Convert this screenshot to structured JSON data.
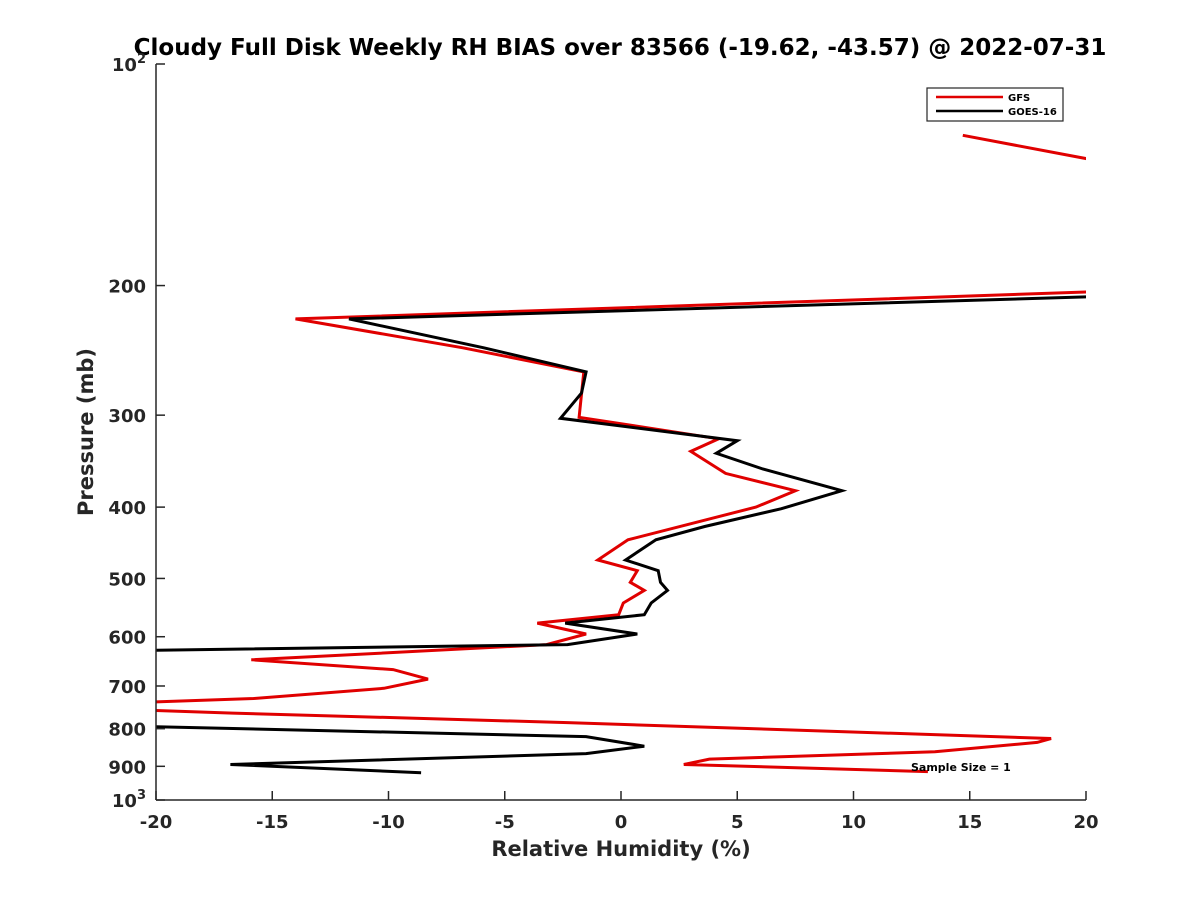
{
  "chart_data": {
    "type": "line",
    "title": "Cloudy Full Disk Weekly RH BIAS over 83566 (-19.62, -43.57) @ 2022-07-31",
    "xlabel": "Relative Humidity (%)",
    "ylabel": "Pressure (mb)",
    "xlim": [
      -20,
      20
    ],
    "ylim": [
      100,
      1000
    ],
    "y_scale": "log",
    "y_reversed": true,
    "grid": false,
    "legend_position": "top-right",
    "x_ticks": [
      "-20",
      "-15",
      "-10",
      "-5",
      "0",
      "5",
      "10",
      "15",
      "20"
    ],
    "y_ticks": [
      "200",
      "300",
      "400",
      "500",
      "600",
      "700",
      "800",
      "900"
    ],
    "y_tick_top": "10",
    "y_tick_top_exp": "2",
    "y_tick_bottom": "10",
    "y_tick_bottom_exp": "3",
    "annotation": "Sample Size = 1",
    "series": [
      {
        "name": "GFS",
        "color": "#e00000",
        "segments": [
          [
            [
              14.7,
              125
            ],
            [
              20.3,
              135
            ]
          ],
          [
            [
              20.2,
              204
            ],
            [
              -14.0,
              222
            ],
            [
              -6.8,
              243
            ],
            [
              -1.6,
              262
            ],
            [
              -1.8,
              302
            ],
            [
              4.2,
              323
            ],
            [
              3.0,
              336
            ],
            [
              4.5,
              360
            ],
            [
              7.5,
              380
            ],
            [
              5.8,
              400
            ],
            [
              0.3,
              443
            ],
            [
              -1.0,
              472
            ],
            [
              0.7,
              488
            ],
            [
              0.4,
              506
            ],
            [
              1.0,
              519
            ],
            [
              0.1,
              540
            ],
            [
              -0.1,
              560
            ],
            [
              -3.6,
              575
            ],
            [
              -1.5,
              595
            ],
            [
              -3.2,
              615
            ],
            [
              -15.9,
              645
            ],
            [
              -9.8,
              665
            ],
            [
              -8.3,
              685
            ],
            [
              -10.2,
              705
            ],
            [
              -15.8,
              728
            ],
            [
              -20.2,
              736
            ],
            [
              -20.3,
              755
            ],
            [
              -16.7,
              762
            ],
            [
              -2.3,
              785
            ],
            [
              18.5,
              825
            ],
            [
              17.9,
              835
            ],
            [
              13.5,
              860
            ],
            [
              3.8,
              880
            ],
            [
              2.7,
              895
            ],
            [
              13.2,
              915
            ]
          ]
        ]
      },
      {
        "name": "GOES-16",
        "color": "#000000",
        "segments": [
          [
            [
              20.4,
              207
            ],
            [
              -11.7,
              222
            ],
            [
              -5.9,
              243
            ],
            [
              -1.5,
              262
            ],
            [
              -1.7,
              280
            ],
            [
              -2.6,
              303
            ],
            [
              5.0,
              325
            ],
            [
              4.1,
              338
            ],
            [
              6.1,
              355
            ],
            [
              9.5,
              380
            ],
            [
              6.9,
              402
            ],
            [
              3.6,
              425
            ],
            [
              1.5,
              443
            ],
            [
              0.2,
              472
            ],
            [
              1.6,
              488
            ],
            [
              1.7,
              506
            ],
            [
              2.0,
              519
            ],
            [
              1.3,
              540
            ],
            [
              1.0,
              560
            ],
            [
              -2.4,
              575
            ],
            [
              0.7,
              595
            ],
            [
              -2.3,
              615
            ],
            [
              -20.3,
              626
            ]
          ],
          [
            [
              -20.2,
              795
            ],
            [
              -1.5,
              820
            ],
            [
              1.0,
              845
            ],
            [
              -1.5,
              865
            ],
            [
              -16.8,
              895
            ],
            [
              -8.6,
              918
            ]
          ]
        ]
      }
    ]
  }
}
